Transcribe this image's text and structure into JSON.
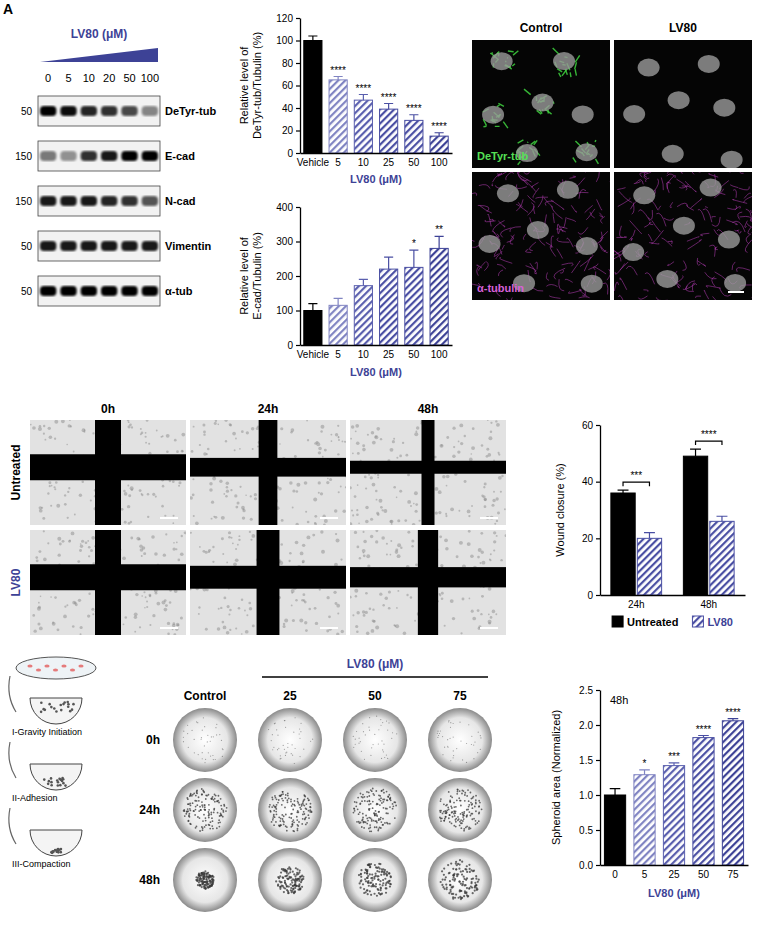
{
  "chart_data": [
    {
      "type": "bar",
      "x_label": "LV80 (μM)",
      "y_label": "Relative level of DeTyr-tub/Tubulin (%)",
      "categories": [
        "Vehicle",
        "5",
        "10",
        "25",
        "50",
        "100"
      ],
      "values": [
        100,
        65,
        47,
        39,
        29,
        15
      ],
      "errors": [
        4,
        3,
        5,
        5,
        5,
        3
      ],
      "colors": [
        "#000000",
        "#8084c2",
        "#5a5fae",
        "#4a4fa3",
        "#4a4fa3",
        "#3d4296"
      ],
      "significance": [
        null,
        "****",
        "****",
        "****",
        "****",
        "****"
      ],
      "ylim": [
        0,
        120
      ],
      "yticks": [
        0,
        20,
        40,
        60,
        80,
        100,
        120
      ]
    },
    {
      "type": "bar",
      "x_label": "LV80 (μM)",
      "y_label": "Relative level of E-cad/Tubulin (%)",
      "categories": [
        "Vehicle",
        "5",
        "10",
        "25",
        "50",
        "100"
      ],
      "values": [
        100,
        115,
        172,
        220,
        225,
        280
      ],
      "errors": [
        20,
        20,
        18,
        35,
        50,
        35
      ],
      "colors": [
        "#000000",
        "#8084c2",
        "#5a5fae",
        "#4a4fa3",
        "#4a4fa3",
        "#3d4296"
      ],
      "significance": [
        null,
        null,
        null,
        null,
        "*",
        "**"
      ],
      "ylim": [
        0,
        400
      ],
      "yticks": [
        0,
        100,
        200,
        300,
        400
      ]
    },
    {
      "type": "bar",
      "y_label": "Wound closure (%)",
      "categories": [
        "24h",
        "48h"
      ],
      "series": [
        {
          "name": "Untreated",
          "color": "#000000",
          "values": [
            36,
            49
          ],
          "errors": [
            1,
            2.5
          ]
        },
        {
          "name": "LV80",
          "color": "#4a4fa3",
          "values": [
            20,
            26
          ],
          "errors": [
            2,
            1.8
          ]
        }
      ],
      "significance": [
        "***",
        "****"
      ],
      "ylim": [
        0,
        60
      ],
      "yticks": [
        0,
        20,
        40,
        60
      ],
      "legend": "bottom"
    },
    {
      "type": "bar",
      "annotation": "48h",
      "x_label": "LV80 (μM)",
      "y_label": "Spheroid area (Normalized)",
      "categories": [
        "0",
        "5",
        "25",
        "50",
        "75"
      ],
      "values": [
        1.0,
        1.29,
        1.42,
        1.82,
        2.06
      ],
      "errors": [
        0.09,
        0.07,
        0.04,
        0.03,
        0.03
      ],
      "colors": [
        "#000000",
        "#8084c2",
        "#5a5fae",
        "#4a4fa3",
        "#3d4296"
      ],
      "significance": [
        null,
        "*",
        "***",
        "****",
        "****"
      ],
      "ylim": [
        0,
        2.5
      ],
      "yticks": [
        {
          "value": 0,
          "label": "0.0"
        },
        0.5,
        {
          "value": 1,
          "label": "1.0"
        },
        1.5,
        {
          "value": 2,
          "label": "2.0"
        },
        2.5
      ]
    }
  ],
  "figure": {
    "panel_letter": "A",
    "blot": {
      "treatment_label": "LV80 (μM)",
      "lanes": [
        "0",
        "5",
        "10",
        "20",
        "50",
        "100"
      ],
      "rows": [
        {
          "label": "DeTyr-tub",
          "mw": 50,
          "band_intensity": [
            1.0,
            0.95,
            0.85,
            0.8,
            0.7,
            0.45
          ]
        },
        {
          "label": "E-cad",
          "mw": 150,
          "band_intensity": [
            0.5,
            0.4,
            0.8,
            0.9,
            1.0,
            1.0
          ]
        },
        {
          "label": "N-cad",
          "mw": 150,
          "band_intensity": [
            0.9,
            0.9,
            0.9,
            0.85,
            0.8,
            0.65
          ]
        },
        {
          "label": "Vimentin",
          "mw": 50,
          "band_intensity": [
            0.9,
            0.9,
            0.9,
            0.9,
            0.9,
            0.9
          ]
        },
        {
          "label": "α-tub",
          "mw": 50,
          "band_intensity": [
            1.0,
            1.0,
            1.0,
            1.0,
            1.0,
            1.0
          ]
        }
      ]
    },
    "microscopy": {
      "columns": [
        "Control",
        "LV80"
      ],
      "rows": [
        "DeTyr-tub",
        "α-tubulin"
      ]
    },
    "wound": {
      "columns": [
        "0h",
        "24h",
        "48h"
      ],
      "rows": [
        "Untreated",
        "LV80"
      ]
    },
    "spheroid": {
      "treatment_label": "LV80 (μM)",
      "columns": [
        "Control",
        "25",
        "50",
        "75"
      ],
      "rows": [
        "0h",
        "24h",
        "48h"
      ],
      "steps": [
        "I-Gravity Initiation",
        "II-Adhesion",
        "III-Compaction"
      ]
    }
  }
}
